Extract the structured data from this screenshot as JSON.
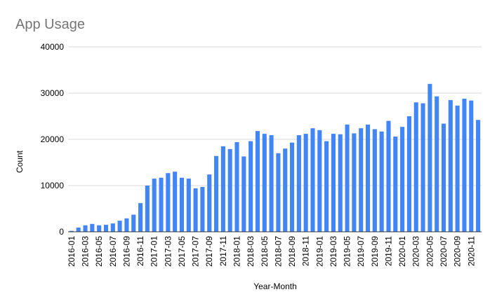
{
  "chart_data": {
    "type": "bar",
    "title": "App Usage",
    "xlabel": "Year-Month",
    "ylabel": "Count",
    "ylim": [
      0,
      40000
    ],
    "yticks": [
      "0",
      "10000",
      "20000",
      "30000",
      "40000"
    ],
    "grid": true,
    "legend": "none",
    "color": "#4285F4",
    "categories": [
      "2016-01",
      "2016-02",
      "2016-03",
      "2016-04",
      "2016-05",
      "2016-06",
      "2016-07",
      "2016-08",
      "2016-09",
      "2016-10",
      "2016-11",
      "2016-12",
      "2017-01",
      "2017-02",
      "2017-03",
      "2017-04",
      "2017-05",
      "2017-06",
      "2017-07",
      "2017-08",
      "2017-09",
      "2017-10",
      "2017-11",
      "2017-12",
      "2018-01",
      "2018-02",
      "2018-03",
      "2018-04",
      "2018-05",
      "2018-06",
      "2018-07",
      "2018-08",
      "2018-09",
      "2018-10",
      "2018-11",
      "2018-12",
      "2019-01",
      "2019-02",
      "2019-03",
      "2019-04",
      "2019-05",
      "2019-06",
      "2019-07",
      "2019-08",
      "2019-09",
      "2019-10",
      "2019-11",
      "2019-12",
      "2020-01",
      "2020-02",
      "2020-03",
      "2020-04",
      "2020-05",
      "2020-06",
      "2020-07",
      "2020-08",
      "2020-09",
      "2020-10",
      "2020-11",
      "2020-12"
    ],
    "values": [
      200,
      900,
      1400,
      1700,
      1400,
      1500,
      1800,
      2400,
      2900,
      3700,
      6200,
      10000,
      11500,
      11700,
      12700,
      13000,
      11700,
      11500,
      9400,
      9700,
      12400,
      16400,
      18500,
      17900,
      19400,
      16300,
      19600,
      21800,
      21200,
      20900,
      17000,
      18000,
      19300,
      20900,
      21200,
      22400,
      22000,
      19600,
      21200,
      21100,
      23200,
      21300,
      22400,
      23200,
      22200,
      21700,
      24000,
      20600,
      22700,
      25000,
      28000,
      27800,
      32000,
      29300,
      23400,
      28500,
      27300,
      28800,
      28400,
      24200
    ]
  }
}
